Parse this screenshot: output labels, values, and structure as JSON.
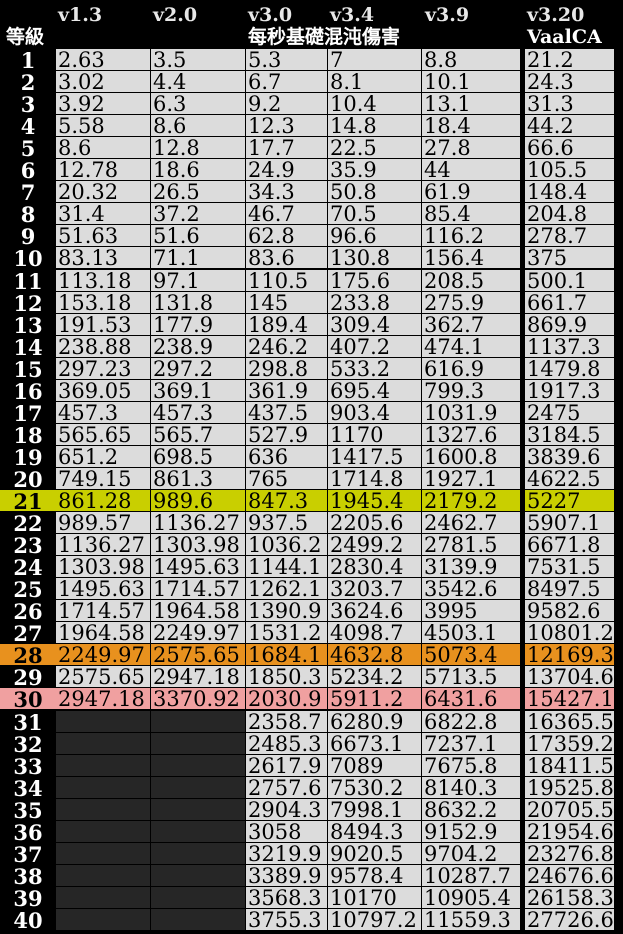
{
  "headers": {
    "level": "等級",
    "versions": [
      "v1.3",
      "v2.0",
      "v3.0",
      "v3.4",
      "v3.9",
      "v3.20"
    ],
    "subtitle": "每秒基礎混沌傷害",
    "last_sub": "VaalCA"
  },
  "colors": {
    "row_default": "#dcdcdc",
    "row_21": "#c9cf00",
    "row_28": "#e8911e",
    "row_30": "#f0a0a0",
    "empty_cell": "#262626",
    "background": "#000000"
  },
  "rows": [
    {
      "level": "1",
      "v13": "2.63",
      "v20": "3.5",
      "v30": "5.3",
      "v34": "7",
      "v39": "8.8",
      "v320": "21.2"
    },
    {
      "level": "2",
      "v13": "3.02",
      "v20": "4.4",
      "v30": "6.7",
      "v34": "8.1",
      "v39": "10.1",
      "v320": "24.3"
    },
    {
      "level": "3",
      "v13": "3.92",
      "v20": "6.3",
      "v30": "9.2",
      "v34": "10.4",
      "v39": "13.1",
      "v320": "31.3"
    },
    {
      "level": "4",
      "v13": "5.58",
      "v20": "8.6",
      "v30": "12.3",
      "v34": "14.8",
      "v39": "18.4",
      "v320": "44.2"
    },
    {
      "level": "5",
      "v13": "8.6",
      "v20": "12.8",
      "v30": "17.7",
      "v34": "22.5",
      "v39": "27.8",
      "v320": "66.6"
    },
    {
      "level": "6",
      "v13": "12.78",
      "v20": "18.6",
      "v30": "24.9",
      "v34": "35.9",
      "v39": "44",
      "v320": "105.5"
    },
    {
      "level": "7",
      "v13": "20.32",
      "v20": "26.5",
      "v30": "34.3",
      "v34": "50.8",
      "v39": "61.9",
      "v320": "148.4"
    },
    {
      "level": "8",
      "v13": "31.4",
      "v20": "37.2",
      "v30": "46.7",
      "v34": "70.5",
      "v39": "85.4",
      "v320": "204.8"
    },
    {
      "level": "9",
      "v13": "51.63",
      "v20": "51.6",
      "v30": "62.8",
      "v34": "96.6",
      "v39": "116.2",
      "v320": "278.7"
    },
    {
      "level": "10",
      "v13": "83.13",
      "v20": "71.1",
      "v30": "83.6",
      "v34": "130.8",
      "v39": "156.4",
      "v320": "375"
    },
    {
      "level": "11",
      "v13": "113.18",
      "v20": "97.1",
      "v30": "110.5",
      "v34": "175.6",
      "v39": "208.5",
      "v320": "500.1"
    },
    {
      "level": "12",
      "v13": "153.18",
      "v20": "131.8",
      "v30": "145",
      "v34": "233.8",
      "v39": "275.9",
      "v320": "661.7"
    },
    {
      "level": "13",
      "v13": "191.53",
      "v20": "177.9",
      "v30": "189.4",
      "v34": "309.4",
      "v39": "362.7",
      "v320": "869.9"
    },
    {
      "level": "14",
      "v13": "238.88",
      "v20": "238.9",
      "v30": "246.2",
      "v34": "407.2",
      "v39": "474.1",
      "v320": "1137.3"
    },
    {
      "level": "15",
      "v13": "297.23",
      "v20": "297.2",
      "v30": "298.8",
      "v34": "533.2",
      "v39": "616.9",
      "v320": "1479.8"
    },
    {
      "level": "16",
      "v13": "369.05",
      "v20": "369.1",
      "v30": "361.9",
      "v34": "695.4",
      "v39": "799.3",
      "v320": "1917.3"
    },
    {
      "level": "17",
      "v13": "457.3",
      "v20": "457.3",
      "v30": "437.5",
      "v34": "903.4",
      "v39": "1031.9",
      "v320": "2475"
    },
    {
      "level": "18",
      "v13": "565.65",
      "v20": "565.7",
      "v30": "527.9",
      "v34": "1170",
      "v39": "1327.6",
      "v320": "3184.5"
    },
    {
      "level": "19",
      "v13": "651.2",
      "v20": "698.5",
      "v30": "636",
      "v34": "1417.5",
      "v39": "1600.8",
      "v320": "3839.6"
    },
    {
      "level": "20",
      "v13": "749.15",
      "v20": "861.3",
      "v30": "765",
      "v34": "1714.8",
      "v39": "1927.1",
      "v320": "4622.5"
    },
    {
      "level": "21",
      "v13": "861.28",
      "v20": "989.6",
      "v30": "847.3",
      "v34": "1945.4",
      "v39": "2179.2",
      "v320": "5227",
      "highlight": "row_21"
    },
    {
      "level": "22",
      "v13": "989.57",
      "v20": "1136.27",
      "v30": "937.5",
      "v34": "2205.6",
      "v39": "2462.7",
      "v320": "5907.1"
    },
    {
      "level": "23",
      "v13": "1136.27",
      "v20": "1303.98",
      "v30": "1036.2",
      "v34": "2499.2",
      "v39": "2781.5",
      "v320": "6671.8"
    },
    {
      "level": "24",
      "v13": "1303.98",
      "v20": "1495.63",
      "v30": "1144.1",
      "v34": "2830.4",
      "v39": "3139.9",
      "v320": "7531.5"
    },
    {
      "level": "25",
      "v13": "1495.63",
      "v20": "1714.57",
      "v30": "1262.1",
      "v34": "3203.7",
      "v39": "3542.6",
      "v320": "8497.5"
    },
    {
      "level": "26",
      "v13": "1714.57",
      "v20": "1964.58",
      "v30": "1390.9",
      "v34": "3624.6",
      "v39": "3995",
      "v320": "9582.6"
    },
    {
      "level": "27",
      "v13": "1964.58",
      "v20": "2249.97",
      "v30": "1531.2",
      "v34": "4098.7",
      "v39": "4503.1",
      "v320": "10801.2"
    },
    {
      "level": "28",
      "v13": "2249.97",
      "v20": "2575.65",
      "v30": "1684.1",
      "v34": "4632.8",
      "v39": "5073.4",
      "v320": "12169.3",
      "highlight": "row_28"
    },
    {
      "level": "29",
      "v13": "2575.65",
      "v20": "2947.18",
      "v30": "1850.3",
      "v34": "5234.2",
      "v39": "5713.5",
      "v320": "13704.6"
    },
    {
      "level": "30",
      "v13": "2947.18",
      "v20": "3370.92",
      "v30": "2030.9",
      "v34": "5911.2",
      "v39": "6431.6",
      "v320": "15427.1",
      "highlight": "row_30"
    },
    {
      "level": "31",
      "v13": "",
      "v20": "",
      "v30": "2358.7",
      "v34": "6280.9",
      "v39": "6822.8",
      "v320": "16365.5"
    },
    {
      "level": "32",
      "v13": "",
      "v20": "",
      "v30": "2485.3",
      "v34": "6673.1",
      "v39": "7237.1",
      "v320": "17359.2"
    },
    {
      "level": "33",
      "v13": "",
      "v20": "",
      "v30": "2617.9",
      "v34": "7089",
      "v39": "7675.8",
      "v320": "18411.5"
    },
    {
      "level": "34",
      "v13": "",
      "v20": "",
      "v30": "2757.6",
      "v34": "7530.2",
      "v39": "8140.3",
      "v320": "19525.8"
    },
    {
      "level": "35",
      "v13": "",
      "v20": "",
      "v30": "2904.3",
      "v34": "7998.1",
      "v39": "8632.2",
      "v320": "20705.5"
    },
    {
      "level": "36",
      "v13": "",
      "v20": "",
      "v30": "3058",
      "v34": "8494.3",
      "v39": "9152.9",
      "v320": "21954.6"
    },
    {
      "level": "37",
      "v13": "",
      "v20": "",
      "v30": "3219.9",
      "v34": "9020.5",
      "v39": "9704.2",
      "v320": "23276.8"
    },
    {
      "level": "38",
      "v13": "",
      "v20": "",
      "v30": "3389.9",
      "v34": "9578.4",
      "v39": "10287.7",
      "v320": "24676.6"
    },
    {
      "level": "39",
      "v13": "",
      "v20": "",
      "v30": "3568.3",
      "v34": "10170",
      "v39": "10905.4",
      "v320": "26158.3"
    },
    {
      "level": "40",
      "v13": "",
      "v20": "",
      "v30": "3755.3",
      "v34": "10797.2",
      "v39": "11559.3",
      "v320": "27726.6"
    }
  ]
}
